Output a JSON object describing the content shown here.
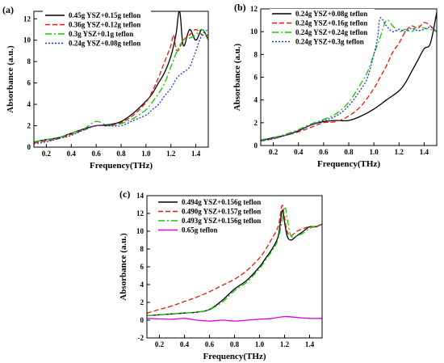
{
  "chart_data": [
    {
      "type": "line",
      "panel_label": "(a)",
      "xlabel": "Frequency(THz)",
      "ylabel": "Absorbance (a.u.)",
      "xlim": [
        0.1,
        1.5
      ],
      "ylim": [
        0,
        12.7
      ],
      "xticks": [
        0.2,
        0.4,
        0.6,
        0.8,
        1.0,
        1.2,
        1.4
      ],
      "xtick_labels": [
        "0.2",
        "0.4",
        "0.6",
        "0.8",
        "1.0",
        "1.2",
        "1.4"
      ],
      "yticks": [
        0,
        2,
        4,
        6,
        8,
        10,
        12
      ],
      "ytick_labels": [
        "0",
        "2",
        "4",
        "6",
        "8",
        "10",
        "12"
      ],
      "legend_position": "top-left",
      "series": [
        {
          "name": "0.45g YSZ+0.15g teflon",
          "color": "#000000",
          "dash": "solid",
          "x": [
            0.1,
            0.2,
            0.3,
            0.4,
            0.5,
            0.6,
            0.7,
            0.8,
            0.9,
            1.0,
            1.05,
            1.1,
            1.15,
            1.2,
            1.24,
            1.27,
            1.3,
            1.35,
            1.4,
            1.45,
            1.5
          ],
          "y": [
            0.5,
            0.7,
            0.9,
            1.3,
            1.7,
            2.0,
            2.1,
            2.4,
            3.2,
            4.3,
            5.0,
            6.0,
            7.0,
            8.5,
            10.5,
            12.7,
            9.5,
            11.0,
            10.0,
            11.0,
            10.0
          ]
        },
        {
          "name": "0.36g YSZ+0.12g teflon",
          "color": "#e3170d",
          "dash": "6,3",
          "x": [
            0.1,
            0.2,
            0.3,
            0.4,
            0.5,
            0.6,
            0.7,
            0.8,
            0.9,
            1.0,
            1.05,
            1.1,
            1.15,
            1.2,
            1.22,
            1.25,
            1.3,
            1.35,
            1.4,
            1.45,
            1.5
          ],
          "y": [
            0.4,
            0.6,
            0.8,
            1.2,
            1.6,
            2.0,
            2.0,
            2.3,
            3.0,
            4.2,
            5.2,
            6.5,
            8.0,
            9.5,
            10.5,
            9.0,
            10.0,
            10.5,
            11.0,
            10.5,
            10.5
          ]
        },
        {
          "name": "0.3g YSZ+0.1g teflon",
          "color": "#17c600",
          "dash": "8,3,2,3",
          "x": [
            0.1,
            0.2,
            0.3,
            0.4,
            0.5,
            0.6,
            0.7,
            0.8,
            0.9,
            1.0,
            1.05,
            1.1,
            1.15,
            1.2,
            1.25,
            1.3,
            1.35,
            1.4,
            1.45,
            1.5
          ],
          "y": [
            0.5,
            0.7,
            0.9,
            1.3,
            1.7,
            2.4,
            2.0,
            2.2,
            2.7,
            3.5,
            4.2,
            5.0,
            6.0,
            7.5,
            9.0,
            10.0,
            10.2,
            10.5,
            11.0,
            10.0
          ]
        },
        {
          "name": "0.24g YSZ+0.08g teflon",
          "color": "#1433d6",
          "dash": "2,2",
          "x": [
            0.1,
            0.2,
            0.3,
            0.4,
            0.5,
            0.6,
            0.7,
            0.8,
            0.9,
            1.0,
            1.05,
            1.1,
            1.15,
            1.2,
            1.25,
            1.3,
            1.35,
            1.4,
            1.45,
            1.5
          ],
          "y": [
            0.3,
            0.5,
            0.8,
            1.1,
            1.6,
            2.0,
            2.0,
            2.0,
            2.5,
            3.0,
            3.5,
            4.0,
            4.8,
            5.5,
            6.5,
            7.0,
            7.5,
            9.0,
            10.5,
            11.0
          ]
        }
      ]
    },
    {
      "type": "line",
      "panel_label": "(b)",
      "xlabel": "Frequency(THz)",
      "ylabel": "Absorbance (a.u.)",
      "xlim": [
        0.1,
        1.5
      ],
      "ylim": [
        0,
        12
      ],
      "xticks": [
        0.2,
        0.4,
        0.6,
        0.8,
        1.0,
        1.2,
        1.4
      ],
      "xtick_labels": [
        "0.2",
        "0.4",
        "0.6",
        "0.8",
        "1.0",
        "1.2",
        "1.4"
      ],
      "yticks": [
        0,
        2,
        4,
        6,
        8,
        10,
        12
      ],
      "ytick_labels": [
        "0",
        "2",
        "4",
        "6",
        "8",
        "10",
        "12"
      ],
      "legend_position": "top-left",
      "series": [
        {
          "name": "0.24g YSZ+0.08g teflon",
          "color": "#000000",
          "dash": "solid",
          "x": [
            0.1,
            0.2,
            0.3,
            0.4,
            0.5,
            0.6,
            0.7,
            0.8,
            0.9,
            1.0,
            1.1,
            1.2,
            1.25,
            1.3,
            1.35,
            1.4,
            1.45,
            1.5
          ],
          "y": [
            0.4,
            0.7,
            0.9,
            1.3,
            1.8,
            2.1,
            2.2,
            2.2,
            2.6,
            3.2,
            4.0,
            4.8,
            5.5,
            6.5,
            7.5,
            8.5,
            9.0,
            11.7
          ]
        },
        {
          "name": "0.24g YSZ+0.16g teflon",
          "color": "#e3170d",
          "dash": "6,3",
          "x": [
            0.1,
            0.2,
            0.3,
            0.4,
            0.5,
            0.6,
            0.7,
            0.8,
            0.9,
            1.0,
            1.05,
            1.1,
            1.15,
            1.2,
            1.25,
            1.3,
            1.35,
            1.4,
            1.45,
            1.5
          ],
          "y": [
            0.4,
            0.6,
            0.9,
            1.2,
            1.6,
            2.0,
            2.1,
            2.6,
            3.5,
            5.0,
            6.0,
            7.0,
            8.2,
            9.0,
            10.0,
            10.5,
            10.3,
            10.8,
            10.5,
            10.0
          ]
        },
        {
          "name": "0.24g YSZ+0.24g teflon",
          "color": "#17c600",
          "dash": "8,3,2,3",
          "x": [
            0.1,
            0.2,
            0.3,
            0.4,
            0.5,
            0.6,
            0.7,
            0.8,
            0.9,
            0.95,
            1.0,
            1.05,
            1.1,
            1.15,
            1.2,
            1.25,
            1.3,
            1.35,
            1.4,
            1.45,
            1.5
          ],
          "y": [
            0.5,
            0.7,
            1.0,
            1.4,
            1.9,
            2.3,
            2.8,
            3.8,
            5.5,
            6.5,
            8.0,
            9.5,
            11.0,
            10.5,
            10.0,
            10.2,
            10.0,
            10.5,
            10.3,
            10.2,
            10.0
          ]
        },
        {
          "name": "0.24g YSZ+0.3g teflon",
          "color": "#1433d6",
          "dash": "2,2",
          "x": [
            0.1,
            0.2,
            0.3,
            0.4,
            0.5,
            0.6,
            0.7,
            0.8,
            0.9,
            0.95,
            1.0,
            1.03,
            1.05,
            1.1,
            1.15,
            1.2,
            1.25,
            1.3,
            1.35,
            1.4,
            1.45,
            1.5
          ],
          "y": [
            0.4,
            0.6,
            0.9,
            1.3,
            1.8,
            2.2,
            2.6,
            3.5,
            5.0,
            6.0,
            8.0,
            9.5,
            11.2,
            10.5,
            10.0,
            10.2,
            10.0,
            10.3,
            10.1,
            10.2,
            10.4,
            10.0
          ]
        }
      ]
    },
    {
      "type": "line",
      "panel_label": "(c)",
      "xlabel": "Frequency(THz)",
      "ylabel": "Absorbance (a.u.)",
      "xlim": [
        0.1,
        1.5
      ],
      "ylim": [
        -2,
        14
      ],
      "xticks": [
        0.2,
        0.4,
        0.6,
        0.8,
        1.0,
        1.2,
        1.4
      ],
      "xtick_labels": [
        "0.2",
        "0.4",
        "0.6",
        "0.8",
        "1.0",
        "1.2",
        "1.4"
      ],
      "yticks": [
        -2,
        0,
        2,
        4,
        6,
        8,
        10,
        12,
        14
      ],
      "ytick_labels": [
        "-2",
        "0",
        "2",
        "4",
        "6",
        "8",
        "10",
        "12",
        "14"
      ],
      "legend_position": "top-left",
      "series": [
        {
          "name": "0.494g YSZ+0.156g teflon",
          "color": "#000000",
          "dash": "solid",
          "x": [
            0.1,
            0.2,
            0.3,
            0.4,
            0.5,
            0.6,
            0.7,
            0.8,
            0.9,
            1.0,
            1.05,
            1.1,
            1.15,
            1.18,
            1.2,
            1.22,
            1.25,
            1.3,
            1.35,
            1.4,
            1.45,
            1.5
          ],
          "y": [
            0.5,
            0.6,
            0.7,
            0.8,
            0.9,
            1.2,
            2.2,
            3.5,
            4.5,
            6.0,
            7.0,
            8.0,
            9.5,
            12.3,
            11.0,
            9.5,
            9.0,
            9.5,
            10.0,
            10.5,
            10.5,
            10.8
          ]
        },
        {
          "name": "0.490g YSZ+0.157g teflon",
          "color": "#e3170d",
          "dash": "6,3",
          "x": [
            0.1,
            0.2,
            0.3,
            0.4,
            0.5,
            0.6,
            0.7,
            0.8,
            0.9,
            1.0,
            1.05,
            1.1,
            1.15,
            1.18,
            1.2,
            1.22,
            1.25,
            1.3,
            1.35,
            1.4,
            1.45,
            1.5
          ],
          "y": [
            0.8,
            1.2,
            1.6,
            2.1,
            2.6,
            3.2,
            3.9,
            4.6,
            5.6,
            7.0,
            8.0,
            9.2,
            10.6,
            12.9,
            11.5,
            10.0,
            9.5,
            10.0,
            10.3,
            10.5,
            10.5,
            10.8
          ]
        },
        {
          "name": "0.493g YSZ+0.156g teflon",
          "color": "#17c600",
          "dash": "8,3,2,3",
          "x": [
            0.1,
            0.2,
            0.3,
            0.4,
            0.5,
            0.6,
            0.7,
            0.8,
            0.9,
            1.0,
            1.05,
            1.1,
            1.15,
            1.2,
            1.22,
            1.25,
            1.3,
            1.35,
            1.4,
            1.45,
            1.5
          ],
          "y": [
            0.5,
            0.6,
            0.7,
            0.8,
            0.9,
            1.2,
            2.0,
            3.3,
            4.3,
            5.8,
            6.8,
            7.8,
            9.2,
            12.5,
            11.5,
            9.5,
            9.5,
            9.8,
            10.3,
            10.6,
            10.8
          ]
        },
        {
          "name": "0.65g teflon",
          "color": "#e000e0",
          "dash": "solid",
          "x": [
            0.1,
            0.2,
            0.3,
            0.4,
            0.5,
            0.6,
            0.7,
            0.8,
            0.9,
            1.0,
            1.1,
            1.2,
            1.3,
            1.4,
            1.5
          ],
          "y": [
            0.2,
            0.15,
            0.1,
            0.2,
            0.0,
            -0.1,
            0.0,
            -0.1,
            0.0,
            0.1,
            0.2,
            0.4,
            0.3,
            0.2,
            0.2
          ]
        }
      ]
    }
  ]
}
